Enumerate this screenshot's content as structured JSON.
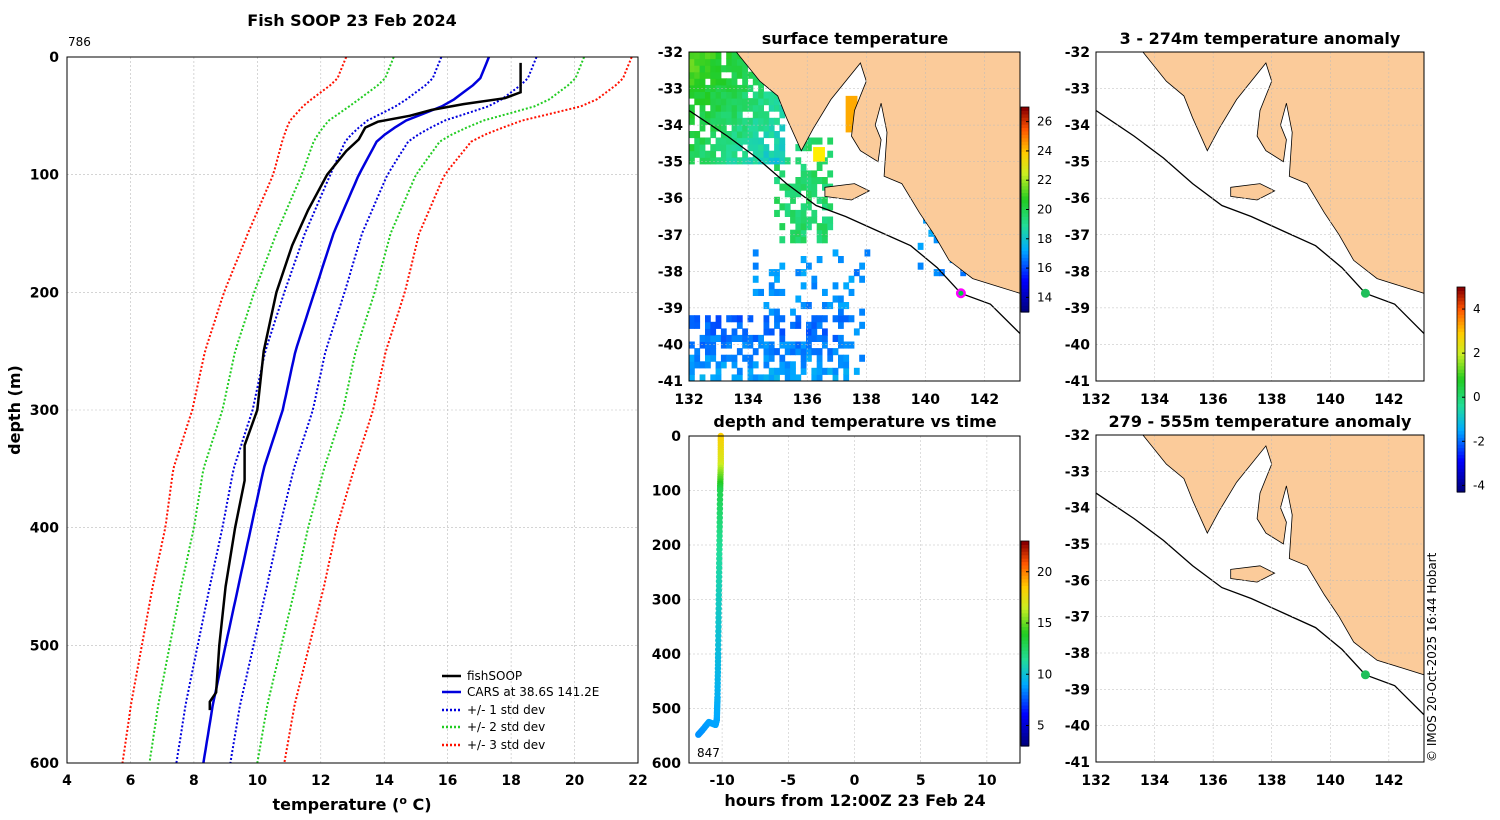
{
  "colors": {
    "fishsoop": "#000000",
    "cars": "#0000dd",
    "std1": "#0000dd",
    "std2": "#22cc22",
    "std3": "#ff1100",
    "land": "#fbcb9a",
    "grid": "#bbbbbb"
  },
  "chart_data": [
    {
      "id": "profile",
      "type": "line",
      "title": "Fish SOOP 23 Feb 2024",
      "corner_label": "786",
      "xlabel": "temperature (",
      "xlabel_sup": "o",
      "xlabel_end": " C)",
      "ylabel": "depth (m)",
      "xlim": [
        4,
        22
      ],
      "ylim": [
        0,
        600
      ],
      "xticks": [
        4,
        6,
        8,
        10,
        12,
        14,
        16,
        18,
        20,
        22
      ],
      "yticks": [
        0,
        100,
        200,
        300,
        400,
        500,
        600
      ],
      "legend": [
        "fishSOOP",
        "CARS at 38.6S 141.2E",
        "+/- 1 std dev",
        "+/- 2 std dev",
        "+/- 3 std dev"
      ],
      "legend_position": "bottom-right",
      "fishsoop": {
        "depth": [
          5,
          30,
          35,
          40,
          45,
          50,
          55,
          60,
          70,
          80,
          100,
          130,
          160,
          200,
          250,
          300,
          330,
          360,
          400,
          450,
          500,
          540,
          548,
          555
        ],
        "temp": [
          18.3,
          18.3,
          17.8,
          16.5,
          15.5,
          14.8,
          13.8,
          13.4,
          13.2,
          12.8,
          12.2,
          11.6,
          11.1,
          10.6,
          10.2,
          10.0,
          9.6,
          9.6,
          9.3,
          9.0,
          8.8,
          8.7,
          8.5,
          8.5
        ]
      },
      "cars": {
        "depth": [
          0,
          20,
          40,
          55,
          70,
          100,
          150,
          200,
          250,
          300,
          350,
          400,
          450,
          500,
          550,
          600
        ],
        "temp": [
          17.3,
          17.0,
          16.0,
          14.6,
          13.8,
          13.2,
          12.4,
          11.8,
          11.2,
          10.8,
          10.2,
          9.8,
          9.4,
          9.0,
          8.6,
          8.3
        ]
      },
      "std_offsets": {
        "depth": [
          0,
          20,
          40,
          55,
          70,
          100,
          150,
          200,
          250,
          300,
          350,
          400,
          450,
          500,
          550,
          600
        ],
        "sigma": [
          1.5,
          1.5,
          1.5,
          1.2,
          1.0,
          0.9,
          0.9,
          0.95,
          0.95,
          0.95,
          0.95,
          0.9,
          0.9,
          0.88,
          0.86,
          0.85
        ]
      }
    },
    {
      "id": "surface_map",
      "type": "heatmap",
      "title": "surface temperature",
      "xlim": [
        132,
        143.2
      ],
      "ylim": [
        -41,
        -32
      ],
      "xticks": [
        132,
        134,
        136,
        138,
        140,
        142
      ],
      "yticks": [
        -32,
        -33,
        -34,
        -35,
        -36,
        -37,
        -38,
        -39,
        -40,
        -41
      ],
      "colorbar_ticks": [
        14,
        16,
        18,
        20,
        22,
        24,
        26
      ],
      "colorbar_range": [
        13,
        27
      ],
      "marker": {
        "lon": 141.2,
        "lat": -38.6
      }
    },
    {
      "id": "anomaly_upper",
      "type": "heatmap",
      "title": "3 - 274m temperature anomaly",
      "xlim": [
        132,
        143.2
      ],
      "ylim": [
        -41,
        -32
      ],
      "xticks": [
        132,
        134,
        136,
        138,
        140,
        142
      ],
      "yticks": [
        -32,
        -33,
        -34,
        -35,
        -36,
        -37,
        -38,
        -39,
        -40,
        -41
      ],
      "marker": {
        "lon": 141.2,
        "lat": -38.6
      }
    },
    {
      "id": "anomaly_lower",
      "type": "heatmap",
      "title": "279 - 555m temperature anomaly",
      "xlim": [
        132,
        143.2
      ],
      "ylim": [
        -41,
        -32
      ],
      "xticks": [
        132,
        134,
        136,
        138,
        140,
        142
      ],
      "yticks": [
        -32,
        -33,
        -34,
        -35,
        -36,
        -37,
        -38,
        -39,
        -40,
        -41
      ],
      "marker": {
        "lon": 141.2,
        "lat": -38.6
      },
      "colorbar_ticks": [
        -4,
        -2,
        0,
        2,
        4
      ],
      "colorbar_range": [
        -4.3,
        5
      ]
    },
    {
      "id": "depth_time",
      "type": "scatter",
      "title": "depth and temperature vs time",
      "xlabel": "hours from 12:00Z 23 Feb 24",
      "xlim": [
        -12.5,
        12.5
      ],
      "ylim": [
        0,
        600
      ],
      "xticks": [
        -10,
        -5,
        0,
        5,
        10
      ],
      "yticks": [
        0,
        100,
        200,
        300,
        400,
        500,
        600
      ],
      "annotation": "847",
      "colorbar_ticks": [
        5,
        10,
        15,
        20
      ],
      "colorbar_range": [
        3,
        23
      ],
      "track": {
        "hours": [
          -10.1,
          -10.1,
          -10.15,
          -10.2,
          -10.25,
          -10.3,
          -10.35,
          -10.4,
          -10.5,
          -11.0,
          -11.5,
          -11.8
        ],
        "depth": [
          0,
          50,
          100,
          200,
          300,
          400,
          480,
          520,
          530,
          525,
          540,
          548
        ],
        "temp": [
          18.5,
          17,
          13,
          11.5,
          10.5,
          9.8,
          9.3,
          9.0,
          8.9,
          8.9,
          8.7,
          8.6
        ]
      }
    }
  ],
  "credit": "© IMOS 20-Oct-2025 16:44 Hobart"
}
